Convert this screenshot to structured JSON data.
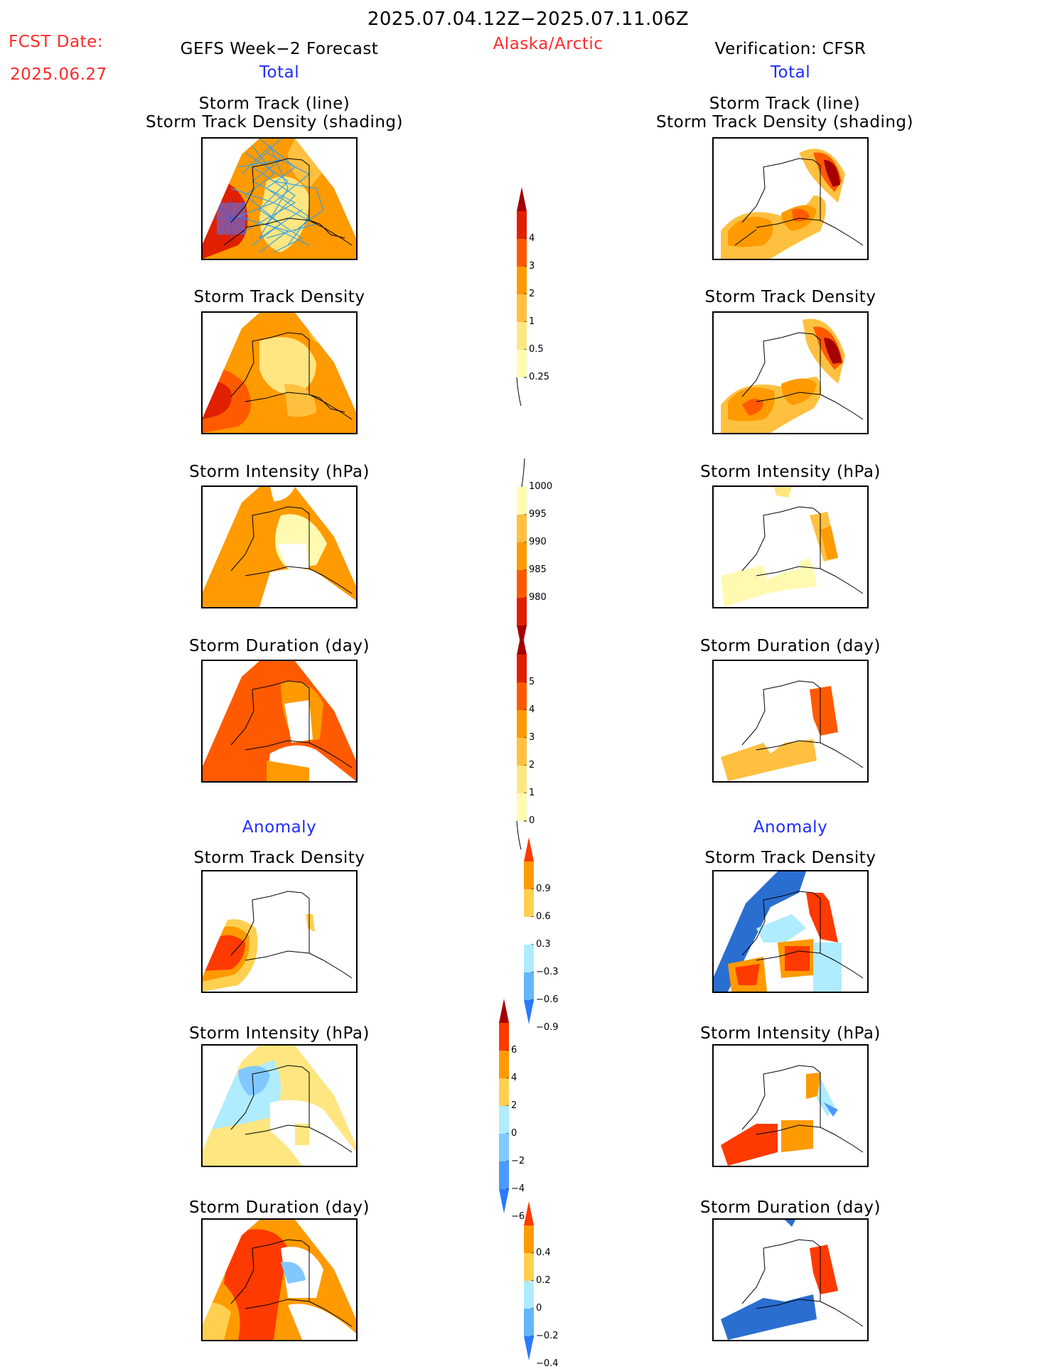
{
  "header": {
    "title": "2025.07.04.12Z−2025.07.11.06Z",
    "region": "Alaska/Arctic",
    "fcst_label": "FCST Date:",
    "fcst_date": "2025.06.27",
    "left_model": "GEFS Week−2 Forecast",
    "right_model": "Verification: CFSR",
    "total_left": "Total",
    "total_right": "Total",
    "anomaly_left": "Anomaly",
    "anomaly_right": "Anomaly"
  },
  "panel_titles": {
    "track_line": "Storm Track (line)",
    "track_shading": "Storm Track Density (shading)",
    "density": "Storm Track Density",
    "intensity": "Storm Intensity (hPa)",
    "duration": "Storm Duration (day)"
  },
  "colorbars": {
    "density": {
      "labels": [
        "4",
        "3",
        "2",
        "1",
        "0.5",
        "0.25"
      ],
      "colors": [
        "#a50000",
        "#e02000",
        "#ff5a00",
        "#ff9a00",
        "#ffc040",
        "#ffe680",
        "#fffab0"
      ]
    },
    "intensity": {
      "labels": [
        "1000",
        "995",
        "990",
        "985",
        "980"
      ],
      "colors": [
        "#fffab0",
        "#ffc040",
        "#ff9a00",
        "#ff5a00",
        "#e02000",
        "#a50000"
      ]
    },
    "duration": {
      "labels": [
        "5",
        "4",
        "3",
        "2",
        "1",
        "0"
      ],
      "colors": [
        "#a50000",
        "#e02000",
        "#ff5a00",
        "#ff9a00",
        "#ffc040",
        "#ffe680",
        "#fffab0"
      ]
    },
    "anom_density": {
      "labels": [
        "0.9",
        "0.6",
        "0.3",
        "−0.3",
        "−0.6",
        "−0.9"
      ],
      "colors": [
        "#ff3a00",
        "#ff9a00",
        "#ffd050",
        "#ffffff",
        "#b0ecff",
        "#60b8ff",
        "#2a7aff"
      ]
    },
    "anom_intensity": {
      "labels": [
        "6",
        "4",
        "2",
        "0",
        "−2",
        "−4",
        "−6"
      ],
      "colors": [
        "#a50000",
        "#ff3a00",
        "#ff9a00",
        "#ffd050",
        "#b0ecff",
        "#80c8ff",
        "#4a9aff",
        "#2a7aff"
      ]
    },
    "anom_duration": {
      "labels": [
        "0.4",
        "0.2",
        "0",
        "−0.2",
        "−0.4"
      ],
      "colors": [
        "#ff3a00",
        "#ff9a00",
        "#ffd050",
        "#b0ecff",
        "#60b8ff",
        "#2a7aff"
      ]
    }
  },
  "colors": {
    "title_red": "#ff2a2a",
    "label_blue": "#1e2cff",
    "track_line": "#3aa0e0"
  }
}
